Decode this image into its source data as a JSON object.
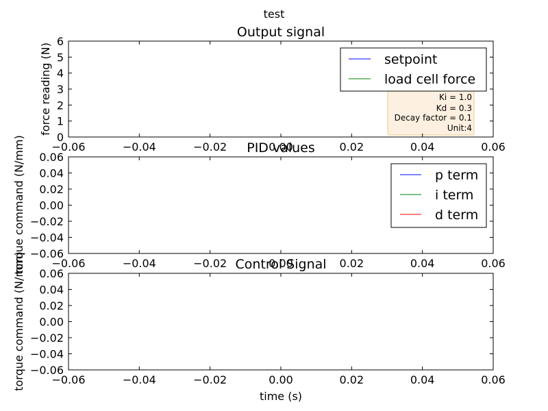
{
  "figure": {
    "suptitle": "test"
  },
  "chart_data": [
    {
      "type": "line",
      "title": "Output signal",
      "xlabel": "",
      "ylabel": "force reading (N)",
      "xlim": [
        -0.06,
        0.06
      ],
      "ylim": [
        0,
        6
      ],
      "x_ticks": [
        "−0.06",
        "−0.04",
        "−0.02",
        "0.00",
        "0.02",
        "0.04",
        "0.06"
      ],
      "y_ticks": [
        "0",
        "1",
        "2",
        "3",
        "4",
        "5",
        "6"
      ],
      "grid": false,
      "legend_position": "upper right",
      "series": [
        {
          "name": "setpoint",
          "color": "#0000ff",
          "x": [],
          "y": []
        },
        {
          "name": "load cell force",
          "color": "#008000",
          "x": [],
          "y": []
        }
      ],
      "annotation": {
        "lines": [
          "Ki = 1.0",
          "Kd = 0.3",
          "Decay factor = 0.1",
          "Unit:4"
        ],
        "box_fill": "#fdf0e0",
        "box_edge": "#f5c98a"
      }
    },
    {
      "type": "line",
      "title": "PID values",
      "xlabel": "",
      "ylabel": "torque command (N/mm)",
      "xlim": [
        -0.06,
        0.06
      ],
      "ylim": [
        -0.06,
        0.06
      ],
      "x_ticks": [
        "−0.06",
        "−0.04",
        "−0.02",
        "0.00",
        "0.02",
        "0.04",
        "0.06"
      ],
      "y_ticks": [
        "−0.06",
        "−0.04",
        "−0.02",
        "0.00",
        "0.02",
        "0.04",
        "0.06"
      ],
      "grid": false,
      "legend_position": "upper right",
      "series": [
        {
          "name": "p term",
          "color": "#0000ff",
          "x": [],
          "y": []
        },
        {
          "name": "i term",
          "color": "#008000",
          "x": [],
          "y": []
        },
        {
          "name": "d term",
          "color": "#ff0000",
          "x": [],
          "y": []
        }
      ]
    },
    {
      "type": "line",
      "title": "Control Signal",
      "xlabel": "time (s)",
      "ylabel": "torque command (N/mm)",
      "xlim": [
        -0.06,
        0.06
      ],
      "ylim": [
        -0.06,
        0.06
      ],
      "x_ticks": [
        "−0.06",
        "−0.04",
        "−0.02",
        "0.00",
        "0.02",
        "0.04",
        "0.06"
      ],
      "y_ticks": [
        "−0.06",
        "−0.04",
        "−0.02",
        "0.00",
        "0.02",
        "0.04",
        "0.06"
      ],
      "grid": false,
      "legend_position": "none",
      "series": []
    }
  ]
}
